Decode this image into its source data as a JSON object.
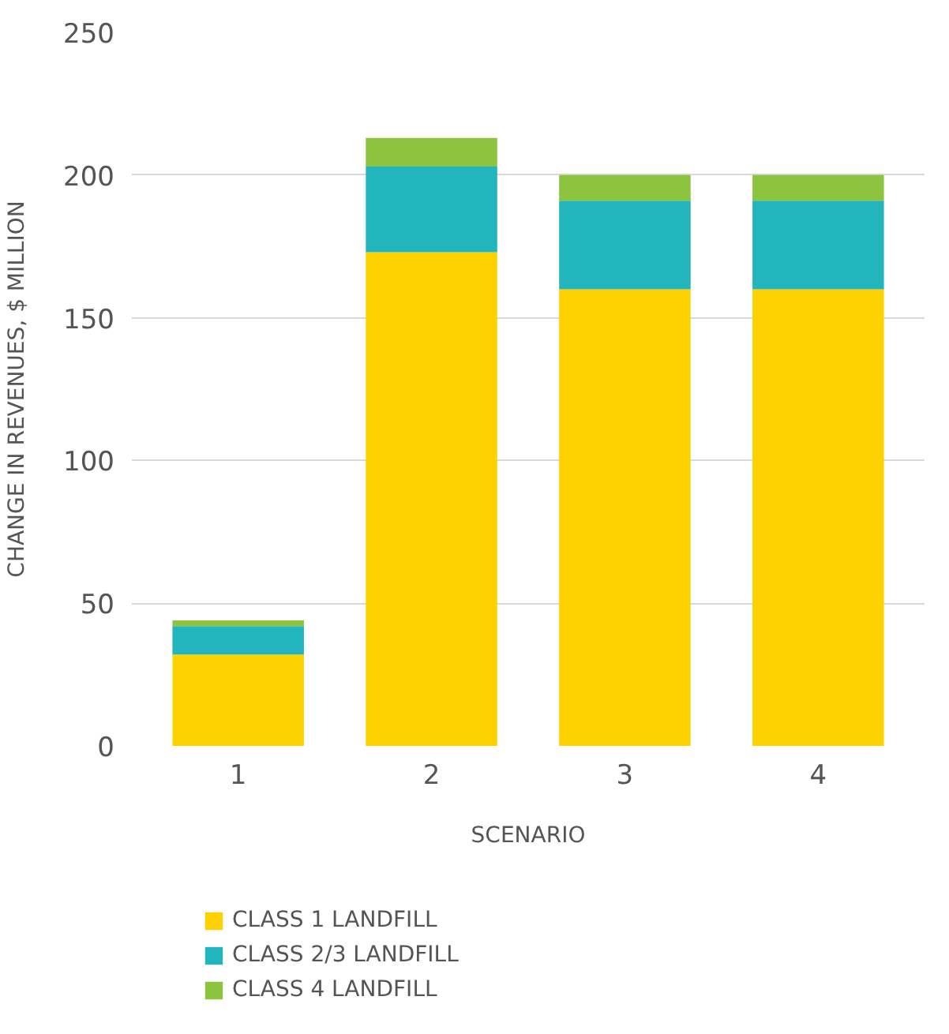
{
  "chart_data": {
    "type": "bar",
    "stacked": true,
    "xlabel": "SCENARIO",
    "ylabel": "CHANGE IN REVENUES, $ MILLION",
    "categories": [
      "1",
      "2",
      "3",
      "4"
    ],
    "series": [
      {
        "name": "CLASS 1 LANDFILL",
        "color": "#fdd200",
        "values": [
          32,
          173,
          160,
          160
        ]
      },
      {
        "name": "CLASS 2/3 LANDFILL",
        "color": "#22b5bd",
        "values": [
          10,
          30,
          31,
          31
        ]
      },
      {
        "name": "CLASS 4 LANDFILL",
        "color": "#8cc43f",
        "values": [
          2,
          10,
          9,
          9
        ]
      }
    ],
    "ylim": [
      0,
      250
    ],
    "yticks": [
      0,
      50,
      100,
      150,
      200,
      250
    ],
    "grid": "y",
    "legend": "bottom"
  }
}
